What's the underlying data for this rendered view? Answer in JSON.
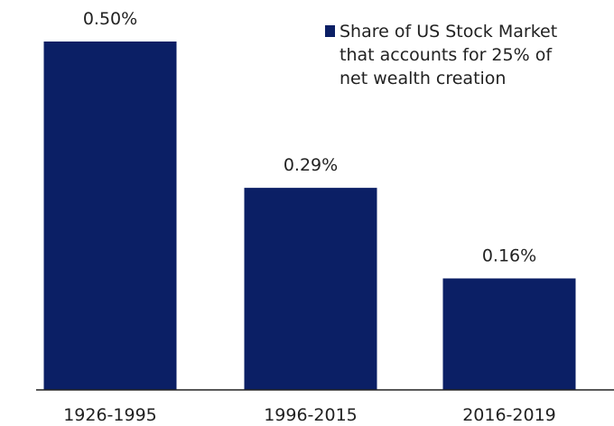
{
  "chart_data": {
    "type": "bar",
    "categories": [
      "1926-1995",
      "1996-2015",
      "2016-2019"
    ],
    "series": [
      {
        "name": "Share of US Stock Market that accounts for 25% of net wealth creation",
        "color": "#0b1f65",
        "values": [
          0.5,
          0.29,
          0.16
        ],
        "value_labels": [
          "0.50%",
          "0.29%",
          "0.16%"
        ]
      }
    ]
  }
}
